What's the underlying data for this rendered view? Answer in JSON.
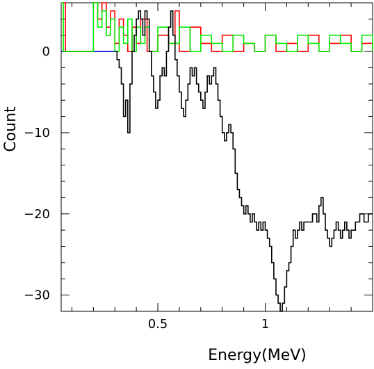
{
  "chart_data": {
    "type": "line",
    "title": "",
    "xlabel": "Energy(MeV)",
    "ylabel": "Count",
    "xlim": [
      0.05,
      1.5
    ],
    "ylim": [
      -32,
      6
    ],
    "x_ticks": [
      {
        "value": 0.5,
        "label": "0.5"
      },
      {
        "value": 1.0,
        "label": "1"
      }
    ],
    "y_ticks": [
      {
        "value": 0,
        "label": "0"
      },
      {
        "value": -10,
        "label": "−10"
      },
      {
        "value": -20,
        "label": "−20"
      },
      {
        "value": -30,
        "label": "−30"
      }
    ],
    "grid": false,
    "legend": "none",
    "series": [
      {
        "color": "#0000cc",
        "points": [
          [
            0.05,
            0
          ],
          [
            0.3,
            0
          ]
        ]
      },
      {
        "color": "#ff0000",
        "points": [
          [
            0.05,
            6
          ],
          [
            0.06,
            6
          ],
          [
            0.07,
            0
          ],
          [
            0.08,
            0
          ],
          [
            0.1,
            0
          ],
          [
            0.15,
            0
          ],
          [
            0.2,
            6
          ],
          [
            0.22,
            4
          ],
          [
            0.24,
            6
          ],
          [
            0.26,
            3
          ],
          [
            0.28,
            5
          ],
          [
            0.3,
            1
          ],
          [
            0.32,
            4
          ],
          [
            0.34,
            2
          ],
          [
            0.36,
            0
          ],
          [
            0.38,
            3
          ],
          [
            0.4,
            1
          ],
          [
            0.42,
            4
          ],
          [
            0.45,
            0
          ],
          [
            0.5,
            2
          ],
          [
            0.55,
            1
          ],
          [
            0.58,
            5
          ],
          [
            0.6,
            0
          ],
          [
            0.65,
            3
          ],
          [
            0.7,
            1
          ],
          [
            0.75,
            0
          ],
          [
            0.8,
            2
          ],
          [
            0.85,
            0
          ],
          [
            0.9,
            1
          ],
          [
            0.95,
            0
          ],
          [
            1.0,
            2
          ],
          [
            1.05,
            0
          ],
          [
            1.1,
            1
          ],
          [
            1.15,
            0
          ],
          [
            1.2,
            2
          ],
          [
            1.25,
            0
          ],
          [
            1.3,
            1
          ],
          [
            1.35,
            2
          ],
          [
            1.4,
            0
          ],
          [
            1.45,
            1
          ],
          [
            1.5,
            0
          ]
        ]
      },
      {
        "color": "#00ee00",
        "points": [
          [
            0.05,
            6
          ],
          [
            0.06,
            0
          ],
          [
            0.18,
            0
          ],
          [
            0.2,
            6
          ],
          [
            0.22,
            3
          ],
          [
            0.24,
            5
          ],
          [
            0.26,
            2
          ],
          [
            0.28,
            4
          ],
          [
            0.3,
            0
          ],
          [
            0.32,
            3
          ],
          [
            0.34,
            1
          ],
          [
            0.36,
            4
          ],
          [
            0.38,
            0
          ],
          [
            0.4,
            3
          ],
          [
            0.42,
            1
          ],
          [
            0.44,
            3
          ],
          [
            0.46,
            0
          ],
          [
            0.5,
            3
          ],
          [
            0.55,
            1
          ],
          [
            0.6,
            3
          ],
          [
            0.65,
            0
          ],
          [
            0.7,
            2
          ],
          [
            0.75,
            1
          ],
          [
            0.8,
            0
          ],
          [
            0.85,
            2
          ],
          [
            0.9,
            1
          ],
          [
            0.95,
            0
          ],
          [
            1.0,
            2
          ],
          [
            1.05,
            1
          ],
          [
            1.1,
            0
          ],
          [
            1.15,
            2
          ],
          [
            1.2,
            1
          ],
          [
            1.25,
            0
          ],
          [
            1.3,
            2
          ],
          [
            1.35,
            1
          ],
          [
            1.4,
            0
          ],
          [
            1.45,
            2
          ],
          [
            1.5,
            0
          ]
        ]
      },
      {
        "color": "#000000",
        "points": [
          [
            0.3,
            0
          ],
          [
            0.31,
            -1
          ],
          [
            0.32,
            -2
          ],
          [
            0.33,
            -4
          ],
          [
            0.34,
            -8
          ],
          [
            0.35,
            -6
          ],
          [
            0.36,
            -10
          ],
          [
            0.37,
            -4
          ],
          [
            0.38,
            0
          ],
          [
            0.39,
            2
          ],
          [
            0.4,
            4
          ],
          [
            0.41,
            5
          ],
          [
            0.42,
            4
          ],
          [
            0.43,
            2
          ],
          [
            0.44,
            5
          ],
          [
            0.45,
            4
          ],
          [
            0.46,
            0
          ],
          [
            0.47,
            -3
          ],
          [
            0.48,
            -5
          ],
          [
            0.49,
            -7
          ],
          [
            0.5,
            -6
          ],
          [
            0.51,
            -3
          ],
          [
            0.52,
            -2
          ],
          [
            0.53,
            -3
          ],
          [
            0.54,
            0
          ],
          [
            0.55,
            3
          ],
          [
            0.56,
            5
          ],
          [
            0.57,
            2
          ],
          [
            0.58,
            -1
          ],
          [
            0.59,
            -3
          ],
          [
            0.6,
            -5
          ],
          [
            0.61,
            -7
          ],
          [
            0.62,
            -8
          ],
          [
            0.63,
            -6
          ],
          [
            0.64,
            -4
          ],
          [
            0.65,
            -2
          ],
          [
            0.66,
            -3
          ],
          [
            0.67,
            -2
          ],
          [
            0.68,
            -4
          ],
          [
            0.69,
            -5
          ],
          [
            0.7,
            -6
          ],
          [
            0.71,
            -7
          ],
          [
            0.72,
            -5
          ],
          [
            0.73,
            -3
          ],
          [
            0.74,
            -4
          ],
          [
            0.75,
            -3
          ],
          [
            0.76,
            -2
          ],
          [
            0.77,
            -4
          ],
          [
            0.78,
            -6
          ],
          [
            0.79,
            -8
          ],
          [
            0.8,
            -10
          ],
          [
            0.81,
            -11
          ],
          [
            0.82,
            -10
          ],
          [
            0.83,
            -9
          ],
          [
            0.84,
            -10
          ],
          [
            0.85,
            -12
          ],
          [
            0.86,
            -15
          ],
          [
            0.87,
            -17
          ],
          [
            0.88,
            -18
          ],
          [
            0.89,
            -19
          ],
          [
            0.9,
            -20
          ],
          [
            0.91,
            -19
          ],
          [
            0.92,
            -20
          ],
          [
            0.93,
            -21
          ],
          [
            0.94,
            -20
          ],
          [
            0.95,
            -21
          ],
          [
            0.96,
            -22
          ],
          [
            0.97,
            -21
          ],
          [
            0.98,
            -22
          ],
          [
            0.99,
            -21
          ],
          [
            1.0,
            -22
          ],
          [
            1.01,
            -23
          ],
          [
            1.02,
            -24
          ],
          [
            1.03,
            -26
          ],
          [
            1.04,
            -28
          ],
          [
            1.05,
            -30
          ],
          [
            1.06,
            -31
          ],
          [
            1.07,
            -32
          ],
          [
            1.08,
            -31
          ],
          [
            1.09,
            -29
          ],
          [
            1.1,
            -27
          ],
          [
            1.11,
            -26
          ],
          [
            1.12,
            -24
          ],
          [
            1.13,
            -22
          ],
          [
            1.14,
            -23
          ],
          [
            1.15,
            -22
          ],
          [
            1.16,
            -21
          ],
          [
            1.17,
            -22
          ],
          [
            1.18,
            -21
          ],
          [
            1.2,
            -21
          ],
          [
            1.22,
            -20
          ],
          [
            1.24,
            -21
          ],
          [
            1.25,
            -19
          ],
          [
            1.26,
            -18
          ],
          [
            1.27,
            -20
          ],
          [
            1.28,
            -22
          ],
          [
            1.29,
            -23
          ],
          [
            1.3,
            -24
          ],
          [
            1.31,
            -23
          ],
          [
            1.32,
            -22
          ],
          [
            1.33,
            -21
          ],
          [
            1.34,
            -22
          ],
          [
            1.35,
            -23
          ],
          [
            1.36,
            -22
          ],
          [
            1.37,
            -21
          ],
          [
            1.38,
            -22
          ],
          [
            1.39,
            -23
          ],
          [
            1.4,
            -22
          ],
          [
            1.42,
            -21
          ],
          [
            1.44,
            -20
          ],
          [
            1.46,
            -21
          ],
          [
            1.48,
            -20
          ],
          [
            1.5,
            -20
          ]
        ]
      }
    ]
  }
}
